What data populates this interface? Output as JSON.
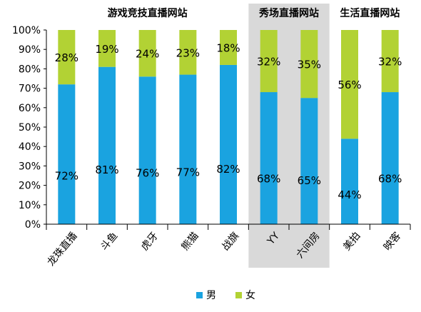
{
  "chart_data": {
    "type": "bar",
    "stacked": true,
    "percent": true,
    "title": "",
    "xlabel": "",
    "ylabel": "",
    "ylim": [
      0,
      100
    ],
    "y_ticks": [
      "0%",
      "10%",
      "20%",
      "30%",
      "40%",
      "50%",
      "60%",
      "70%",
      "80%",
      "90%",
      "100%"
    ],
    "groups": [
      {
        "label": "游戏竞技直播网站",
        "categories": [
          "龙珠直播",
          "斗鱼",
          "虎牙",
          "熊猫",
          "战旗"
        ],
        "shaded": false
      },
      {
        "label": "秀场直播网站",
        "categories": [
          "YY",
          "六间房"
        ],
        "shaded": true
      },
      {
        "label": "生活直播网站",
        "categories": [
          "美拍",
          "映客"
        ],
        "shaded": false
      }
    ],
    "categories": [
      "龙珠直播",
      "斗鱼",
      "虎牙",
      "熊猫",
      "战旗",
      "YY",
      "六间房",
      "美拍",
      "映客"
    ],
    "series": [
      {
        "name": "男",
        "color": "#1aa3e0",
        "values": [
          72,
          81,
          76,
          77,
          82,
          68,
          65,
          44,
          68
        ],
        "labels": [
          "72%",
          "81%",
          "76%",
          "77%",
          "82%",
          "68%",
          "65%",
          "44%",
          "68%"
        ]
      },
      {
        "name": "女",
        "color": "#b2d234",
        "values": [
          28,
          19,
          24,
          23,
          18,
          32,
          35,
          56,
          32
        ],
        "labels": [
          "28%",
          "19%",
          "24%",
          "23%",
          "18%",
          "32%",
          "35%",
          "56%",
          "32%"
        ]
      }
    ],
    "grid": false,
    "legend": "bottom",
    "colors": {
      "shade": "#d9d9d9",
      "axis": "#000000"
    }
  }
}
